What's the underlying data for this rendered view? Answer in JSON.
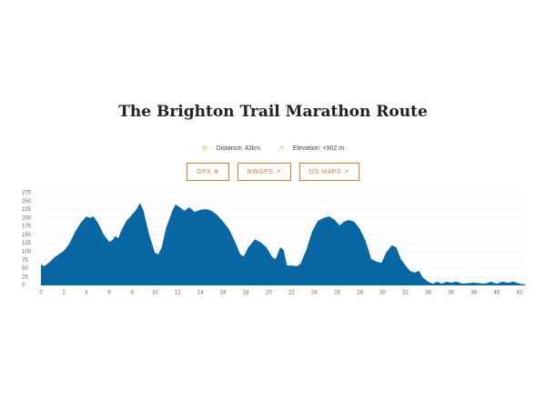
{
  "header": {
    "title": "The Brighton Trail Marathon Route"
  },
  "info": {
    "distance": "Distance: 42km",
    "elevation": "Elevation: +902 m"
  },
  "buttons": [
    "GPX",
    "RWGPS",
    "OS MAPS"
  ],
  "chart_data": {
    "type": "area",
    "color": "#0866a3",
    "x": [
      0,
      0.3,
      0.8,
      1.2,
      2,
      2.5,
      3,
      3.5,
      4,
      4.3,
      4.6,
      5,
      5.5,
      6,
      6.3,
      6.5,
      6.8,
      7,
      7.5,
      8,
      8.4,
      8.7,
      9,
      9.5,
      10,
      10.3,
      10.6,
      11,
      11.5,
      11.8,
      12.2,
      12.6,
      13,
      13.5,
      14,
      14.5,
      15,
      15.5,
      16,
      16.5,
      17,
      17.5,
      17.8,
      18.2,
      18.8,
      19.3,
      19.8,
      20.3,
      20.6,
      21,
      21.3,
      21.6,
      22,
      22.5,
      22.8,
      23.3,
      23.8,
      24.3,
      24.8,
      25.3,
      25.8,
      26.2,
      26.6,
      27,
      27.5,
      28,
      28.5,
      29,
      29.5,
      29.9,
      30.3,
      30.8,
      31.2,
      31.6,
      32,
      32.4,
      32.8,
      33.2,
      33.5,
      34,
      34.4,
      34.8,
      35.2,
      35.6,
      36,
      36.5,
      37,
      38,
      39,
      39.5,
      40,
      40.5,
      41,
      41.5,
      42,
      42.5
    ],
    "values": [
      62,
      57,
      70,
      84,
      102,
      124,
      159,
      186,
      205,
      200,
      205,
      186,
      151,
      129,
      135,
      146,
      140,
      159,
      191,
      210,
      226,
      245,
      221,
      151,
      97,
      92,
      113,
      172,
      218,
      240,
      232,
      221,
      232,
      218,
      224,
      226,
      221,
      208,
      189,
      167,
      132,
      92,
      86,
      113,
      137,
      127,
      113,
      84,
      78,
      113,
      105,
      59,
      59,
      57,
      65,
      105,
      159,
      191,
      200,
      205,
      194,
      178,
      189,
      194,
      189,
      167,
      132,
      78,
      70,
      67,
      97,
      119,
      113,
      78,
      59,
      43,
      38,
      43,
      24,
      11,
      5,
      11,
      5,
      11,
      8,
      11,
      5,
      8,
      5,
      11,
      5,
      11,
      8,
      11,
      5,
      3
    ],
    "xlim": [
      0,
      42.5
    ],
    "xticks": [
      0,
      2,
      4,
      6,
      8,
      10,
      12,
      14,
      16,
      18,
      20,
      22,
      24,
      26,
      28,
      30,
      32,
      34,
      36,
      38,
      40,
      42
    ],
    "ylim": [
      0,
      275
    ],
    "yticks": [
      0,
      25,
      50,
      75,
      100,
      125,
      150,
      175,
      200,
      225,
      250,
      275
    ],
    "grid": true
  }
}
